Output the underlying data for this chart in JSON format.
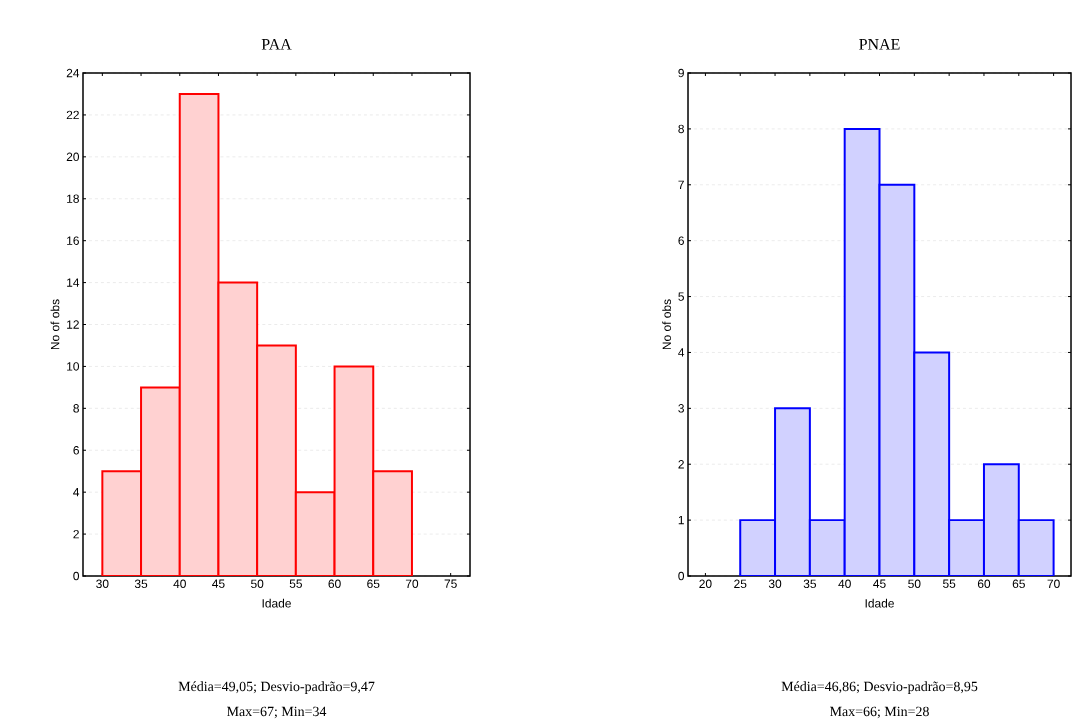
{
  "chart_data": [
    {
      "type": "histogram",
      "title": "PAA",
      "xlabel": "Idade",
      "ylabel": "No of obs",
      "color": "#ff0000",
      "bins": [
        30,
        35,
        40,
        45,
        50,
        55,
        60,
        65,
        70
      ],
      "values": [
        5,
        9,
        23,
        14,
        11,
        4,
        10,
        5
      ],
      "xlim": [
        27.5,
        77.5
      ],
      "ylim": [
        0,
        24
      ],
      "xticks": [
        30,
        35,
        40,
        45,
        50,
        55,
        60,
        65,
        70,
        75
      ],
      "yticks": [
        0,
        2,
        4,
        6,
        8,
        10,
        12,
        14,
        16,
        18,
        20,
        22,
        24
      ],
      "grid": "y",
      "annotations": [
        "Média=49,05; Desvio-padrão=9,47",
        "Max=67; Min=34"
      ]
    },
    {
      "type": "histogram",
      "title": "PNAE",
      "xlabel": "Idade",
      "ylabel": "No of obs",
      "color": "#0000ff",
      "bins": [
        25,
        30,
        35,
        40,
        45,
        50,
        55,
        60,
        65,
        70
      ],
      "values": [
        1,
        3,
        1,
        8,
        7,
        4,
        1,
        2,
        1
      ],
      "xlim": [
        17.5,
        72.5
      ],
      "ylim": [
        0,
        9
      ],
      "xticks": [
        20,
        25,
        30,
        35,
        40,
        45,
        50,
        55,
        60,
        65,
        70
      ],
      "yticks": [
        0,
        1,
        2,
        3,
        4,
        5,
        6,
        7,
        8,
        9
      ],
      "grid": "y",
      "annotations": [
        "Média=46,86; Desvio-padrão=8,95",
        "Max=66; Min=28"
      ]
    }
  ]
}
